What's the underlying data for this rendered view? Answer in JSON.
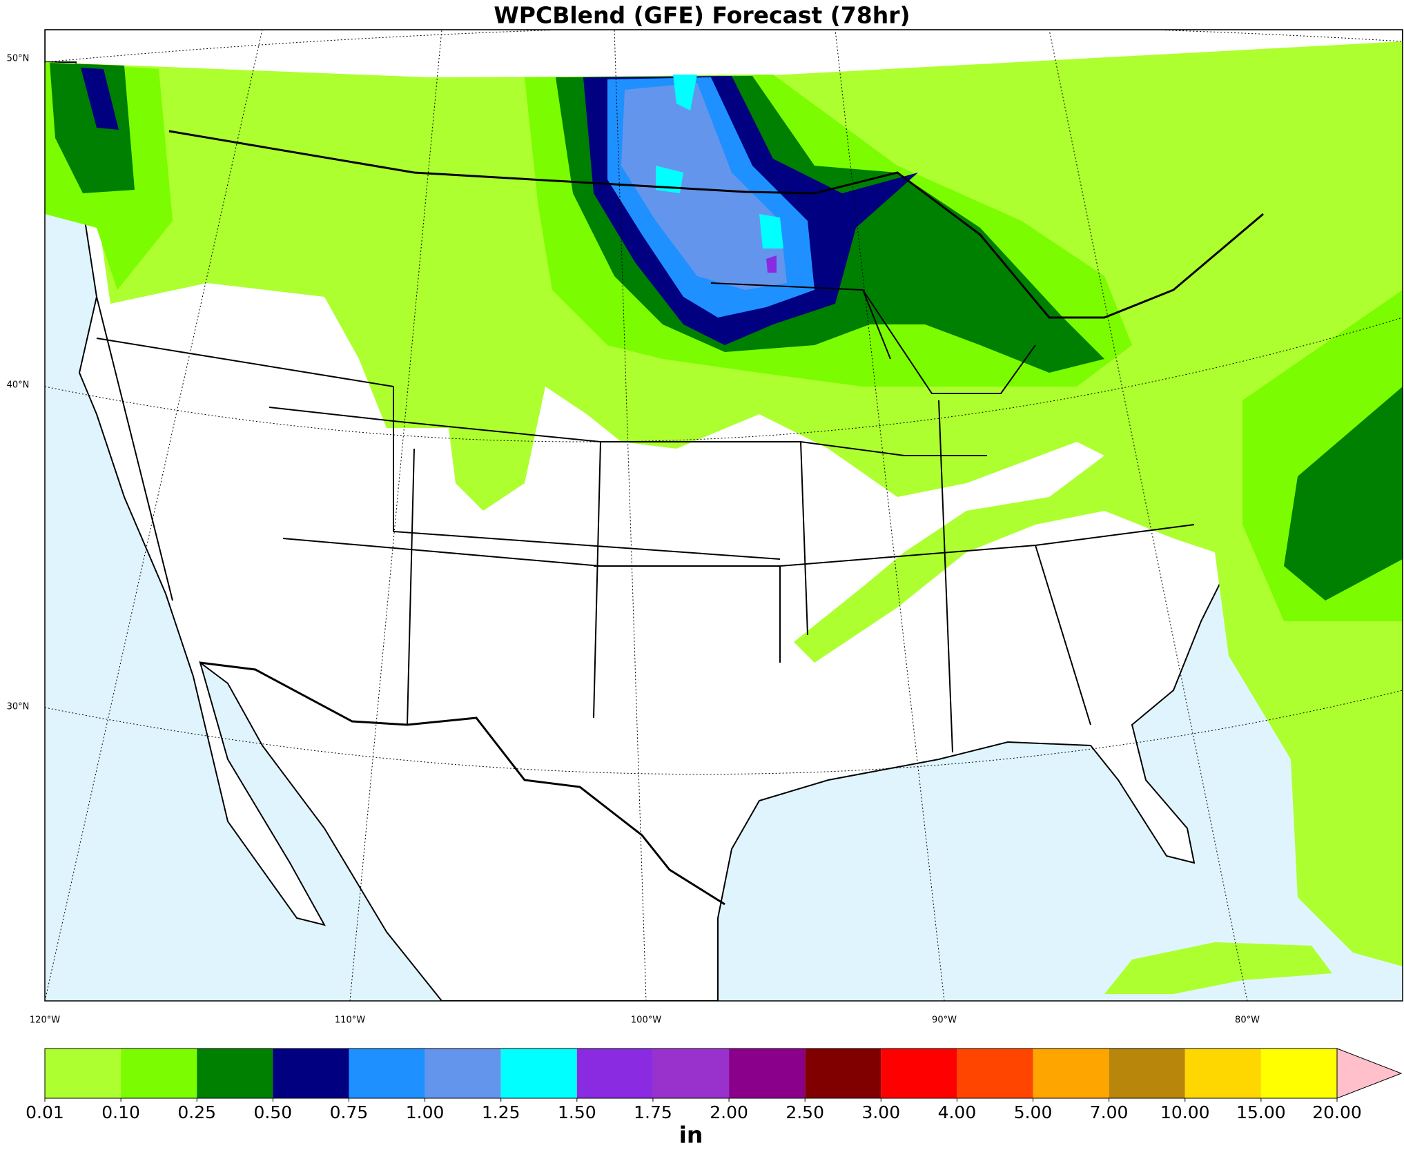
{
  "title": "WPCBlend (GFE) Forecast (78hr)",
  "lat_labels": [
    "50°N",
    "40°N",
    "30°N"
  ],
  "lon_labels": [
    "120°W",
    "110°W",
    "100°W",
    "90°W",
    "80°W"
  ],
  "colorbar": {
    "ticks": [
      0.01,
      {
        "value": 0.1,
        "label": "0.10"
      },
      0.25,
      {
        "value": 0.5,
        "label": "0.50"
      },
      0.75,
      {
        "value": 1,
        "label": "1.00"
      },
      1.25,
      {
        "value": 1.5,
        "label": "1.50"
      },
      1.75,
      {
        "value": 2,
        "label": "2.00"
      },
      {
        "value": 2.5,
        "label": "2.50"
      },
      {
        "value": 3,
        "label": "3.00"
      },
      {
        "value": 4,
        "label": "4.00"
      },
      {
        "value": 5,
        "label": "5.00"
      },
      {
        "value": 7,
        "label": "7.00"
      },
      {
        "value": 10,
        "label": "10.00"
      },
      {
        "value": 15,
        "label": "15.00"
      },
      {
        "value": 20,
        "label": "20.00"
      }
    ],
    "colors": [
      "#adff2f",
      "#7cfc00",
      "#008000",
      "#000080",
      "#1e90ff",
      "#6495ed",
      "#00ffff",
      "#8a2be2",
      "#9932cc",
      "#8b008b",
      "#800000",
      "#ff0000",
      "#ff4500",
      "#ffa500",
      "#b8860b",
      "#ffd700",
      "#ffff00"
    ],
    "extend_color": "#ffc0cb",
    "unit": "in"
  }
}
